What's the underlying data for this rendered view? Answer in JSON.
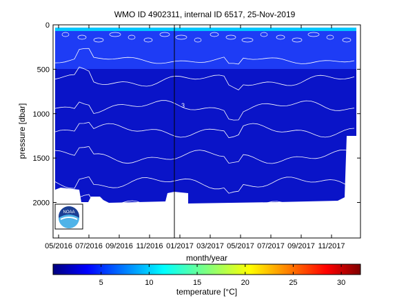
{
  "chart_data": {
    "type": "heatmap",
    "title": "WMO ID 4902311, internal ID 6517, 25-Nov-2019",
    "xlabel": "month/year",
    "ylabel": "pressure [dbar]",
    "x_ticks": [
      "05/2016",
      "07/2016",
      "09/2016",
      "11/2016",
      "01/2017",
      "03/2017",
      "05/2017",
      "07/2017",
      "09/2017",
      "11/2017"
    ],
    "x_range": [
      "05/2016",
      "01/2018"
    ],
    "y_ticks": [
      0,
      500,
      1000,
      1500,
      2000
    ],
    "y_range": [
      0,
      2400
    ],
    "y_reversed": true,
    "colorbar": {
      "label": "temperature [°C]",
      "ticks": [
        5,
        10,
        15,
        20,
        25,
        30
      ],
      "range": [
        0,
        32
      ],
      "colormap": "jet"
    },
    "contour_labels": [
      "3"
    ],
    "field_color_deep": "#0a14c8",
    "field_color_shallow": "#1e3cf5",
    "surface_color": "#00c8ff",
    "logo_text": "NOAA"
  }
}
